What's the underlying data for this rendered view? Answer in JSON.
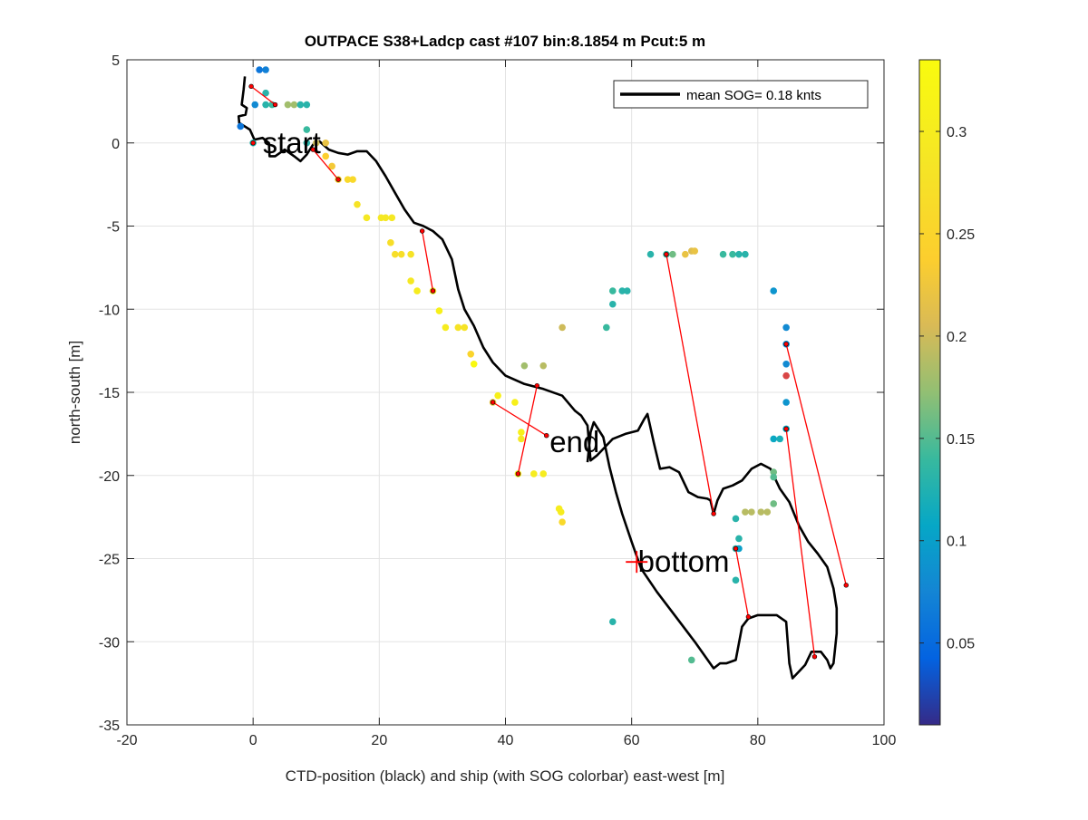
{
  "chart_data": {
    "type": "scatter",
    "title": "OUTPACE S38+Ladcp cast #107 bin:8.1854 m  Pcut:5 m",
    "xlabel": "CTD-position (black) and ship (with SOG colorbar) east-west [m]",
    "ylabel": "north-south [m]",
    "xlim": [
      -20,
      100
    ],
    "ylim": [
      -35,
      5
    ],
    "xticks": [
      -20,
      0,
      20,
      40,
      60,
      80,
      100
    ],
    "yticks": [
      -35,
      -30,
      -25,
      -20,
      -15,
      -10,
      -5,
      0,
      5
    ],
    "grid": true,
    "legend": {
      "location": "top-right",
      "entries": [
        "mean SOG=  0.18 knts"
      ]
    },
    "colorbar": {
      "min": 0.01,
      "max": 0.335,
      "ticks": [
        0.05,
        0.1,
        0.15,
        0.2,
        0.25,
        0.3
      ],
      "colormap": "parula"
    },
    "ctd_track": [
      [
        -1.3,
        4
      ],
      [
        -1.5,
        3.2
      ],
      [
        -1.8,
        2.3
      ],
      [
        -1,
        2.1
      ],
      [
        -1.2,
        1.7
      ],
      [
        -2.3,
        1.6
      ],
      [
        -2.2,
        1.2
      ],
      [
        -0.5,
        0.8
      ],
      [
        0.2,
        0.2
      ],
      [
        1.5,
        0.3
      ],
      [
        2.5,
        0
      ],
      [
        2.6,
        -0.8
      ],
      [
        3.5,
        -0.8
      ],
      [
        5,
        -0.4
      ],
      [
        6.5,
        -0.8
      ],
      [
        7.5,
        -1.1
      ],
      [
        8.5,
        -0.7
      ],
      [
        9.5,
        -0.1
      ],
      [
        10.5,
        0.1
      ],
      [
        12,
        -0.4
      ],
      [
        13.5,
        -0.6
      ],
      [
        15,
        -0.7
      ],
      [
        16.5,
        -0.5
      ],
      [
        18,
        -0.5
      ],
      [
        19.5,
        -1.1
      ],
      [
        21,
        -2
      ],
      [
        22.5,
        -3
      ],
      [
        24,
        -4
      ],
      [
        25.5,
        -4.8
      ],
      [
        27,
        -5
      ],
      [
        28.5,
        -5.3
      ],
      [
        30,
        -5.8
      ],
      [
        31.5,
        -7
      ],
      [
        32.5,
        -8.8
      ],
      [
        33.5,
        -10
      ],
      [
        35,
        -11
      ],
      [
        36.5,
        -12.3
      ],
      [
        38,
        -13.2
      ],
      [
        40,
        -14
      ],
      [
        43,
        -14.5
      ],
      [
        46,
        -14.8
      ],
      [
        49,
        -15.2
      ],
      [
        51,
        -16.1
      ],
      [
        52,
        -16.4
      ],
      [
        53,
        -17
      ],
      [
        53.5,
        -19.1
      ],
      [
        54.5,
        -18.8
      ],
      [
        55.5,
        -18.4
      ],
      [
        57,
        -17.8
      ],
      [
        59,
        -17.5
      ],
      [
        61,
        -17.3
      ],
      [
        62,
        -16.6
      ],
      [
        62.5,
        -16.3
      ],
      [
        63.5,
        -18
      ],
      [
        64.5,
        -19.6
      ],
      [
        66,
        -19.5
      ],
      [
        67.5,
        -19.8
      ],
      [
        69,
        -21
      ],
      [
        70.5,
        -21.3
      ],
      [
        72,
        -21.4
      ],
      [
        72.5,
        -21.5
      ],
      [
        73,
        -22.3
      ],
      [
        73.6,
        -21.5
      ],
      [
        74.5,
        -20.8
      ],
      [
        76,
        -20.6
      ],
      [
        77.5,
        -20.3
      ],
      [
        79,
        -19.6
      ],
      [
        80.5,
        -19.3
      ],
      [
        82,
        -19.6
      ],
      [
        83.5,
        -20.8
      ],
      [
        85,
        -21.6
      ],
      [
        86.5,
        -23
      ],
      [
        88,
        -24
      ],
      [
        89.5,
        -24.7
      ],
      [
        91,
        -25.5
      ],
      [
        92,
        -26.8
      ],
      [
        92.5,
        -28
      ],
      [
        92.5,
        -29.5
      ],
      [
        92,
        -31.3
      ],
      [
        91.5,
        -31.6
      ],
      [
        91,
        -31.1
      ],
      [
        90,
        -30.6
      ],
      [
        88.5,
        -30.6
      ],
      [
        87.5,
        -31.4
      ],
      [
        86.5,
        -31.8
      ],
      [
        85.5,
        -32.2
      ],
      [
        85,
        -31.3
      ],
      [
        84.5,
        -28.8
      ],
      [
        83,
        -28.4
      ],
      [
        81.5,
        -28.4
      ],
      [
        80,
        -28.4
      ],
      [
        78.5,
        -28.6
      ],
      [
        77.5,
        -29.1
      ],
      [
        76.5,
        -31.1
      ],
      [
        75,
        -31.3
      ],
      [
        74,
        -31.3
      ],
      [
        73,
        -31.6
      ],
      [
        70,
        -30
      ],
      [
        67,
        -28.5
      ],
      [
        64,
        -27
      ],
      [
        61.5,
        -25.6
      ],
      [
        60,
        -24
      ],
      [
        58.5,
        -22.3
      ],
      [
        57.5,
        -21
      ],
      [
        56.5,
        -19.5
      ],
      [
        55.5,
        -17.7
      ],
      [
        54,
        -16.8
      ],
      [
        53.5,
        -17.4
      ],
      [
        53,
        -19.2
      ]
    ],
    "ship_points": [
      {
        "x": 1,
        "y": 4.4,
        "sog": 0.06
      },
      {
        "x": 2,
        "y": 4.4,
        "sog": 0.07
      },
      {
        "x": 2,
        "y": 3,
        "sog": 0.13
      },
      {
        "x": 0.3,
        "y": 2.3,
        "sog": 0.08
      },
      {
        "x": 2,
        "y": 2.3,
        "sog": 0.13
      },
      {
        "x": 3,
        "y": 2.3,
        "sog": 0.14
      },
      {
        "x": 5.5,
        "y": 2.3,
        "sog": 0.18
      },
      {
        "x": 6.5,
        "y": 2.3,
        "sog": 0.18
      },
      {
        "x": 7.5,
        "y": 2.3,
        "sog": 0.13
      },
      {
        "x": 8.5,
        "y": 2.3,
        "sog": 0.13
      },
      {
        "x": -2,
        "y": 1,
        "sog": 0.06
      },
      {
        "x": 0,
        "y": 0,
        "sog": 0.13
      },
      {
        "x": 8.5,
        "y": 0.8,
        "sog": 0.14
      },
      {
        "x": 8.5,
        "y": 0,
        "sog": 0.13
      },
      {
        "x": 10,
        "y": 0,
        "sog": 0.2
      },
      {
        "x": 11.5,
        "y": 0,
        "sog": 0.22
      },
      {
        "x": 11.5,
        "y": -0.8,
        "sog": 0.24
      },
      {
        "x": 12.5,
        "y": -1.4,
        "sog": 0.23
      },
      {
        "x": 13.5,
        "y": -2.2,
        "sog": 0.24
      },
      {
        "x": 15,
        "y": -2.2,
        "sog": 0.26
      },
      {
        "x": 15.8,
        "y": -2.2,
        "sog": 0.26
      },
      {
        "x": 16.5,
        "y": -3.7,
        "sog": 0.28
      },
      {
        "x": 18,
        "y": -4.5,
        "sog": 0.29
      },
      {
        "x": 20.3,
        "y": -4.5,
        "sog": 0.29
      },
      {
        "x": 21,
        "y": -4.5,
        "sog": 0.29
      },
      {
        "x": 22,
        "y": -4.5,
        "sog": 0.29
      },
      {
        "x": 21.8,
        "y": -6,
        "sog": 0.27
      },
      {
        "x": 22.5,
        "y": -6.7,
        "sog": 0.27
      },
      {
        "x": 23.5,
        "y": -6.7,
        "sog": 0.27
      },
      {
        "x": 25,
        "y": -6.7,
        "sog": 0.28
      },
      {
        "x": 25,
        "y": -8.3,
        "sog": 0.29
      },
      {
        "x": 26,
        "y": -8.9,
        "sog": 0.3
      },
      {
        "x": 28.5,
        "y": -8.9,
        "sog": 0.29
      },
      {
        "x": 29.5,
        "y": -10.1,
        "sog": 0.31
      },
      {
        "x": 30.5,
        "y": -11.1,
        "sog": 0.3
      },
      {
        "x": 32.5,
        "y": -11.1,
        "sog": 0.28
      },
      {
        "x": 33.5,
        "y": -11.1,
        "sog": 0.28
      },
      {
        "x": 34.5,
        "y": -12.7,
        "sog": 0.25
      },
      {
        "x": 35,
        "y": -13.3,
        "sog": 0.33
      },
      {
        "x": 38,
        "y": -15.6,
        "sog": 0.22
      },
      {
        "x": 38.8,
        "y": -15.2,
        "sog": 0.31
      },
      {
        "x": 41.5,
        "y": -15.6,
        "sog": 0.31
      },
      {
        "x": 42.5,
        "y": -17.4,
        "sog": 0.31
      },
      {
        "x": 42.5,
        "y": -17.8,
        "sog": 0.29
      },
      {
        "x": 42,
        "y": -19.9,
        "sog": 0.3
      },
      {
        "x": 44.5,
        "y": -19.9,
        "sog": 0.3
      },
      {
        "x": 46,
        "y": -19.9,
        "sog": 0.3
      },
      {
        "x": 48.5,
        "y": -22,
        "sog": 0.3
      },
      {
        "x": 48.8,
        "y": -22.2,
        "sog": 0.3
      },
      {
        "x": 49,
        "y": -22.8,
        "sog": 0.26
      },
      {
        "x": 43,
        "y": -13.4,
        "sog": 0.18
      },
      {
        "x": 46,
        "y": -13.4,
        "sog": 0.19
      },
      {
        "x": 49,
        "y": -11.1,
        "sog": 0.2
      },
      {
        "x": 56,
        "y": -11.1,
        "sog": 0.14
      },
      {
        "x": 57,
        "y": -8.9,
        "sog": 0.14
      },
      {
        "x": 57,
        "y": -9.7,
        "sog": 0.13
      },
      {
        "x": 58.5,
        "y": -8.9,
        "sog": 0.13
      },
      {
        "x": 59.3,
        "y": -8.9,
        "sog": 0.13
      },
      {
        "x": 63,
        "y": -6.7,
        "sog": 0.13
      },
      {
        "x": 65.5,
        "y": -6.7,
        "sog": 0.14
      },
      {
        "x": 66.5,
        "y": -6.7,
        "sog": 0.16
      },
      {
        "x": 68.5,
        "y": -6.7,
        "sog": 0.22
      },
      {
        "x": 69.5,
        "y": -6.5,
        "sog": 0.21
      },
      {
        "x": 70,
        "y": -6.5,
        "sog": 0.22
      },
      {
        "x": 74.5,
        "y": -6.7,
        "sog": 0.14
      },
      {
        "x": 76,
        "y": -6.7,
        "sog": 0.14
      },
      {
        "x": 77,
        "y": -6.7,
        "sog": 0.13
      },
      {
        "x": 78,
        "y": -6.7,
        "sog": 0.13
      },
      {
        "x": 82.5,
        "y": -8.9,
        "sog": 0.09
      },
      {
        "x": 84.5,
        "y": -11.1,
        "sog": 0.08
      },
      {
        "x": 84.5,
        "y": -12.1,
        "sog": 0.08
      },
      {
        "x": 84.5,
        "y": -13.3,
        "sog": 0.08
      },
      {
        "x": 84.5,
        "y": -14
      },
      {
        "x": 84.5,
        "y": -15.6,
        "sog": 0.09
      },
      {
        "x": 84.5,
        "y": -17.2,
        "sog": 0.11
      },
      {
        "x": 82.5,
        "y": -17.8,
        "sog": 0.11
      },
      {
        "x": 83.5,
        "y": -17.8,
        "sog": 0.12
      },
      {
        "x": 82.5,
        "y": -19.8,
        "sog": 0.16
      },
      {
        "x": 82.5,
        "y": -20.1,
        "sog": 0.15
      },
      {
        "x": 82.5,
        "y": -21.7,
        "sog": 0.16
      },
      {
        "x": 78,
        "y": -22.2,
        "sog": 0.19
      },
      {
        "x": 79,
        "y": -22.2,
        "sog": 0.19
      },
      {
        "x": 80.5,
        "y": -22.2,
        "sog": 0.19
      },
      {
        "x": 81.5,
        "y": -22.2,
        "sog": 0.19
      },
      {
        "x": 76.5,
        "y": -22.6,
        "sog": 0.13
      },
      {
        "x": 77,
        "y": -23.8,
        "sog": 0.13
      },
      {
        "x": 76.5,
        "y": -24.4,
        "sog": 0.13
      },
      {
        "x": 77,
        "y": -24.4,
        "sog": 0.1
      },
      {
        "x": 76.5,
        "y": -26.3,
        "sog": 0.13
      },
      {
        "x": 57,
        "y": -28.8,
        "sog": 0.13
      },
      {
        "x": 69.5,
        "y": -31.1,
        "sog": 0.15
      }
    ],
    "ctd_markers": [
      [
        -0.3,
        3.4
      ],
      [
        3.5,
        2.3
      ],
      [
        0,
        0
      ],
      [
        9.5,
        -0.4
      ],
      [
        13.5,
        -2.2
      ],
      [
        26.8,
        -5.3
      ],
      [
        28.5,
        -8.9
      ],
      [
        38,
        -15.6
      ],
      [
        46.5,
        -17.6
      ],
      [
        42,
        -19.9
      ],
      [
        45,
        -14.6
      ],
      [
        65.5,
        -6.7
      ],
      [
        73,
        -22.3
      ],
      [
        84.5,
        -12.1
      ],
      [
        84.5,
        -17.2
      ],
      [
        76.5,
        -24.4
      ],
      [
        78.5,
        -28.5
      ],
      [
        89,
        -30.9
      ],
      [
        94,
        -26.6
      ]
    ],
    "red_segments": [
      [
        [
          -0.3,
          3.4
        ],
        [
          3.5,
          2.3
        ]
      ],
      [
        [
          9.5,
          -0.4
        ],
        [
          13.5,
          -2.2
        ]
      ],
      [
        [
          26.8,
          -5.3
        ],
        [
          28.5,
          -8.9
        ]
      ],
      [
        [
          38,
          -15.6
        ],
        [
          46.5,
          -17.6
        ]
      ],
      [
        [
          42,
          -19.9
        ],
        [
          45,
          -14.6
        ]
      ],
      [
        [
          65.5,
          -6.7
        ],
        [
          73,
          -22.3
        ]
      ],
      [
        [
          84.5,
          -12.1
        ],
        [
          94,
          -26.6
        ]
      ],
      [
        [
          84.5,
          -17.2
        ],
        [
          89,
          -30.9
        ]
      ],
      [
        [
          76.5,
          -24.4
        ],
        [
          78.5,
          -28.5
        ]
      ]
    ],
    "annotations": [
      {
        "text": "start",
        "x": 1.5,
        "y": 0
      },
      {
        "text": "end",
        "x": 47,
        "y": -18
      },
      {
        "text": "bottom",
        "x": 61,
        "y": -25.2
      }
    ],
    "bottom_marker": {
      "x": 60.8,
      "y": -25.2
    }
  }
}
